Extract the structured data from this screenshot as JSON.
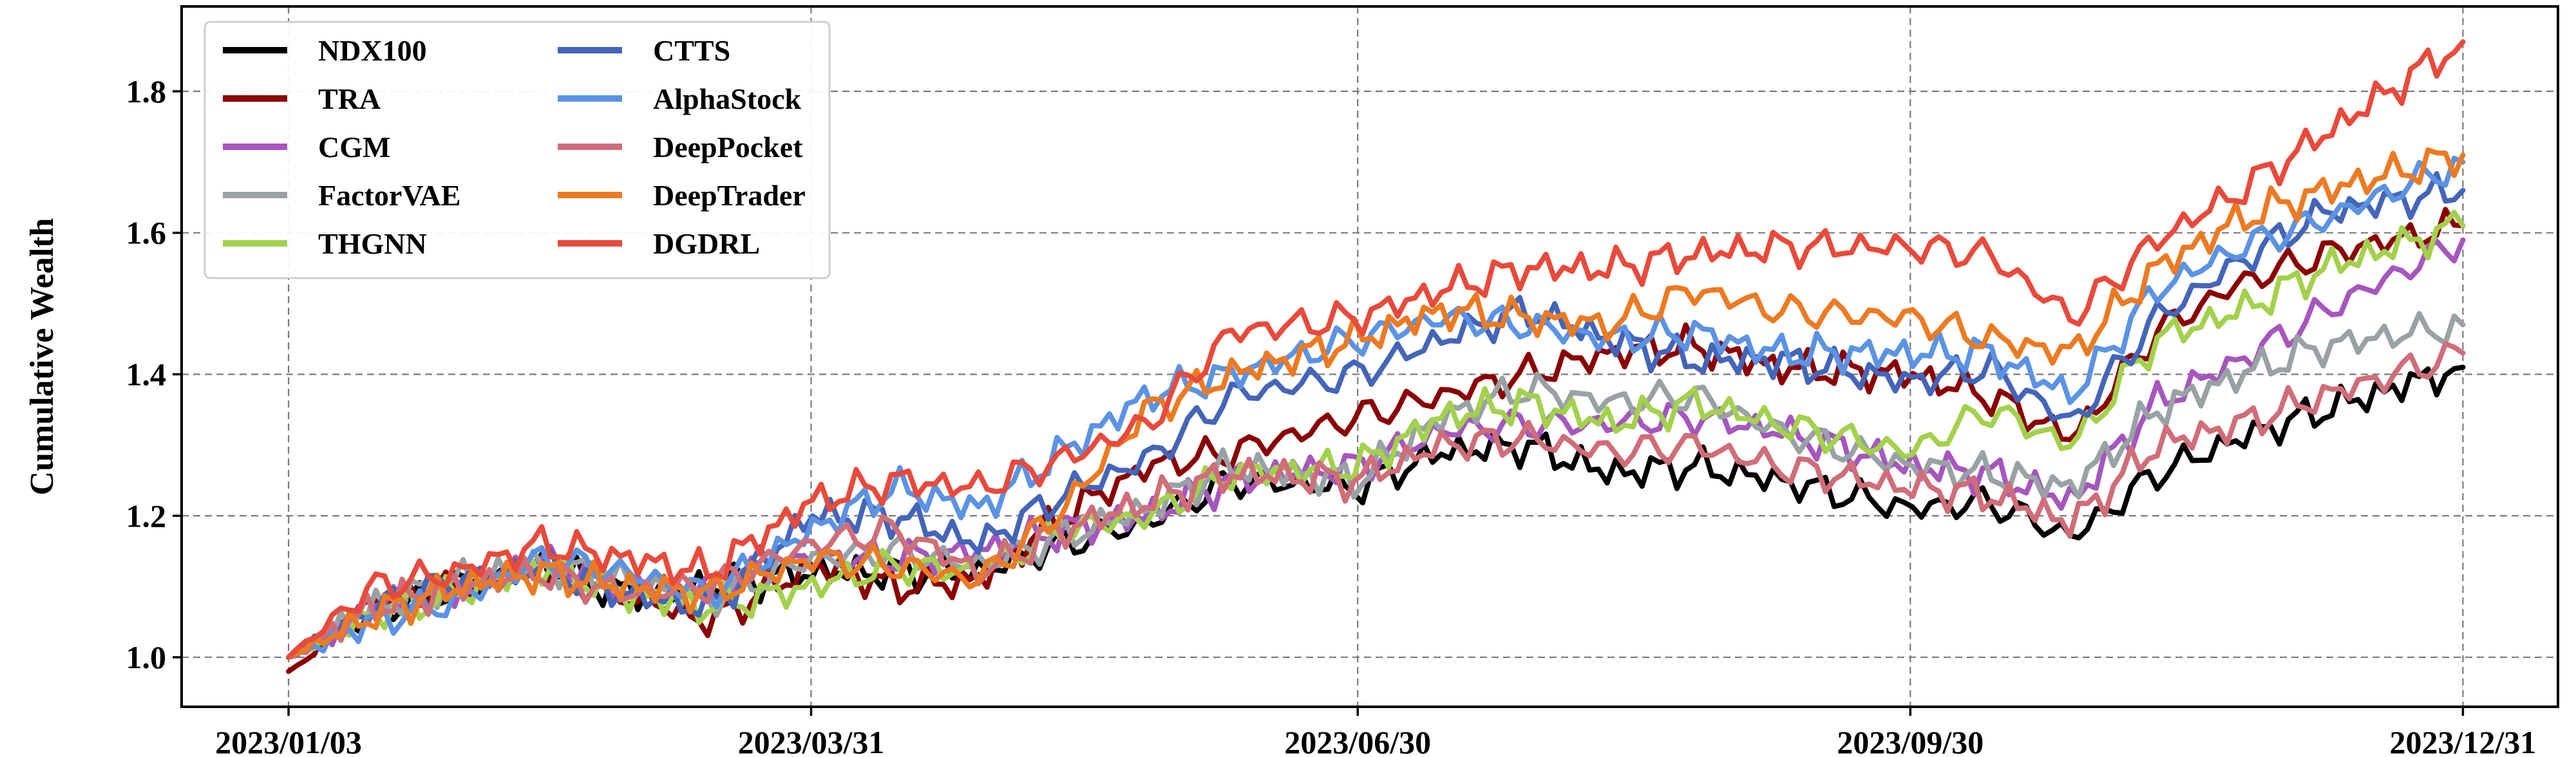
{
  "chart_data": {
    "type": "line",
    "title": "",
    "xlabel": "",
    "ylabel": "Cumulative Wealth",
    "x_ticks": [
      "2023/01/03",
      "2023/03/31",
      "2023/06/30",
      "2023/09/30",
      "2023/12/31"
    ],
    "y_ticks": [
      "1.0",
      "1.2",
      "1.4",
      "1.6",
      "1.8"
    ],
    "ylim": [
      0.93,
      1.92
    ],
    "xlim": [
      "2023/01/03",
      "2023/12/31"
    ],
    "grid": true,
    "legend_position": "top-left",
    "x": [
      "2023/01/03",
      "2023/01/17",
      "2023/01/31",
      "2023/02/14",
      "2023/02/28",
      "2023/03/14",
      "2023/03/31",
      "2023/04/14",
      "2023/04/28",
      "2023/05/12",
      "2023/05/26",
      "2023/06/09",
      "2023/06/30",
      "2023/07/14",
      "2023/07/28",
      "2023/08/11",
      "2023/08/25",
      "2023/09/08",
      "2023/09/30",
      "2023/10/13",
      "2023/10/27",
      "2023/11/10",
      "2023/11/24",
      "2023/12/08",
      "2023/12/31"
    ],
    "series": [
      {
        "name": "NDX100",
        "color": "#000000",
        "values": [
          1.0,
          1.06,
          1.1,
          1.13,
          1.09,
          1.1,
          1.12,
          1.12,
          1.12,
          1.16,
          1.19,
          1.25,
          1.24,
          1.29,
          1.3,
          1.26,
          1.27,
          1.25,
          1.21,
          1.22,
          1.17,
          1.26,
          1.31,
          1.35,
          1.41
        ]
      },
      {
        "name": "TRA",
        "color": "#8b0000",
        "values": [
          0.98,
          1.08,
          1.1,
          1.12,
          1.09,
          1.05,
          1.13,
          1.1,
          1.11,
          1.2,
          1.27,
          1.29,
          1.34,
          1.37,
          1.4,
          1.43,
          1.44,
          1.41,
          1.4,
          1.37,
          1.31,
          1.46,
          1.53,
          1.57,
          1.61
        ]
      },
      {
        "name": "CGM",
        "color": "#a656bd",
        "values": [
          1.0,
          1.07,
          1.1,
          1.14,
          1.1,
          1.1,
          1.14,
          1.14,
          1.15,
          1.18,
          1.2,
          1.25,
          1.27,
          1.32,
          1.33,
          1.33,
          1.34,
          1.32,
          1.27,
          1.26,
          1.22,
          1.36,
          1.42,
          1.49,
          1.59
        ]
      },
      {
        "name": "FactorVAE",
        "color": "#98a2a4",
        "values": [
          1.0,
          1.07,
          1.11,
          1.13,
          1.11,
          1.08,
          1.14,
          1.15,
          1.13,
          1.17,
          1.21,
          1.27,
          1.25,
          1.34,
          1.38,
          1.36,
          1.37,
          1.32,
          1.27,
          1.26,
          1.24,
          1.35,
          1.4,
          1.44,
          1.47
        ]
      },
      {
        "name": "THGNN",
        "color": "#a3d14c",
        "values": [
          1.0,
          1.06,
          1.09,
          1.13,
          1.09,
          1.07,
          1.1,
          1.13,
          1.12,
          1.18,
          1.2,
          1.26,
          1.27,
          1.34,
          1.36,
          1.33,
          1.36,
          1.33,
          1.29,
          1.35,
          1.3,
          1.45,
          1.49,
          1.55,
          1.61
        ]
      },
      {
        "name": "CTTS",
        "color": "#4465b8",
        "values": [
          1.0,
          1.07,
          1.11,
          1.13,
          1.09,
          1.07,
          1.2,
          1.2,
          1.16,
          1.23,
          1.28,
          1.37,
          1.4,
          1.45,
          1.49,
          1.45,
          1.42,
          1.42,
          1.39,
          1.41,
          1.33,
          1.48,
          1.56,
          1.63,
          1.66
        ]
      },
      {
        "name": "AlphaStock",
        "color": "#5b93e3",
        "values": [
          1.0,
          1.05,
          1.08,
          1.14,
          1.12,
          1.09,
          1.18,
          1.24,
          1.21,
          1.29,
          1.37,
          1.4,
          1.45,
          1.48,
          1.47,
          1.45,
          1.46,
          1.43,
          1.43,
          1.43,
          1.37,
          1.52,
          1.58,
          1.62,
          1.7
        ]
      },
      {
        "name": "DeepPocket",
        "color": "#d06d78",
        "values": [
          1.0,
          1.07,
          1.1,
          1.12,
          1.09,
          1.1,
          1.16,
          1.18,
          1.12,
          1.18,
          1.22,
          1.26,
          1.25,
          1.3,
          1.31,
          1.29,
          1.3,
          1.27,
          1.24,
          1.23,
          1.19,
          1.3,
          1.33,
          1.37,
          1.43
        ]
      },
      {
        "name": "DeepTrader",
        "color": "#ec7a22",
        "values": [
          1.0,
          1.06,
          1.1,
          1.12,
          1.1,
          1.09,
          1.14,
          1.13,
          1.11,
          1.21,
          1.35,
          1.4,
          1.45,
          1.49,
          1.48,
          1.47,
          1.52,
          1.49,
          1.48,
          1.45,
          1.43,
          1.55,
          1.62,
          1.66,
          1.71
        ]
      },
      {
        "name": "DGDRL",
        "color": "#e84a3b",
        "values": [
          1.0,
          1.1,
          1.12,
          1.16,
          1.14,
          1.12,
          1.22,
          1.25,
          1.24,
          1.28,
          1.33,
          1.46,
          1.48,
          1.52,
          1.55,
          1.55,
          1.57,
          1.58,
          1.58,
          1.57,
          1.48,
          1.59,
          1.66,
          1.74,
          1.87
        ]
      }
    ]
  }
}
